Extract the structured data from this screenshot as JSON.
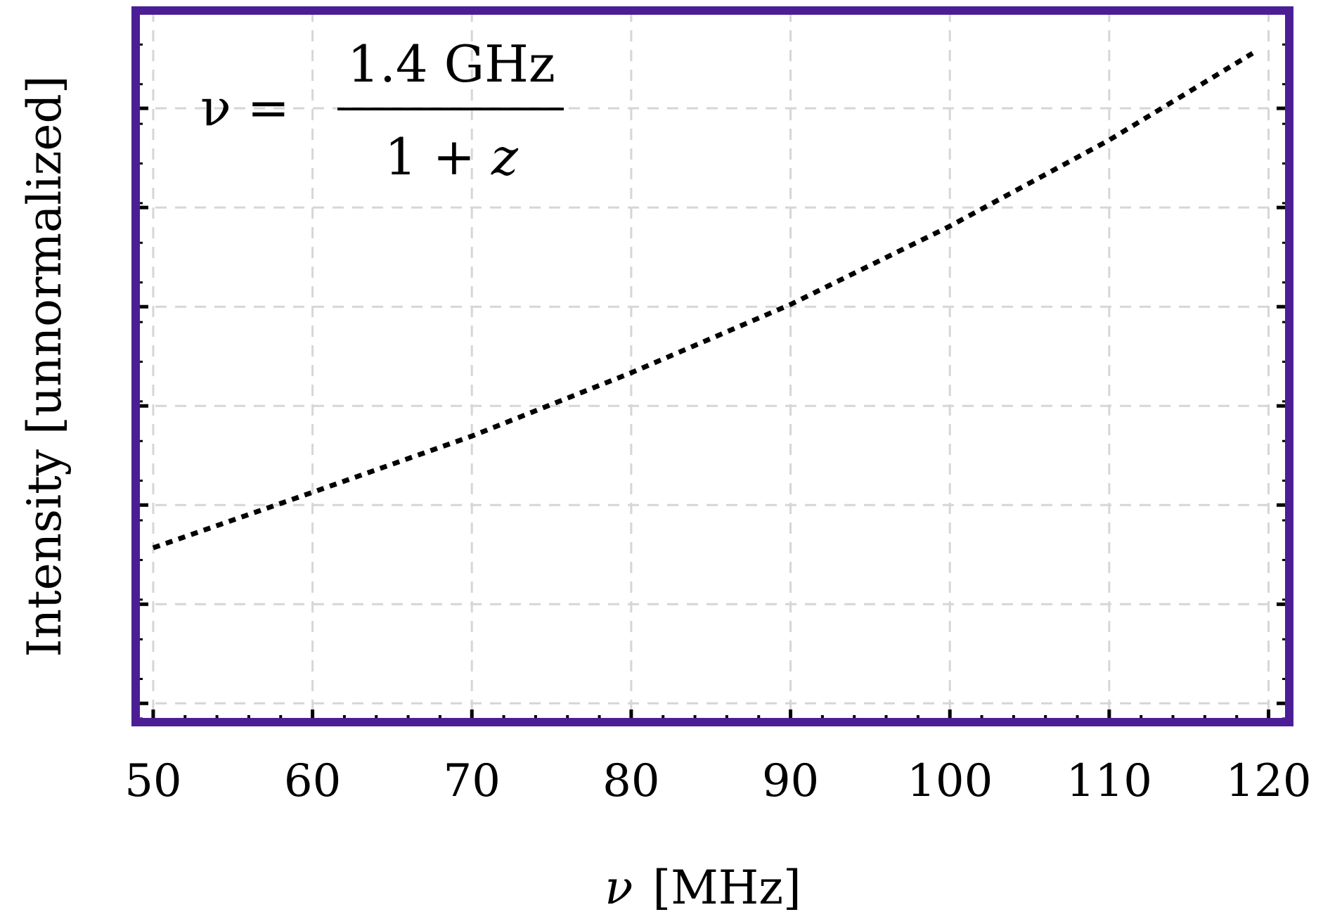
{
  "chart_data": {
    "type": "line",
    "xlabel_symbol": "ν",
    "xlabel_unit": "[MHz]",
    "ylabel": "Intensity [unnormalized]",
    "xlim": [
      48.9,
      121.3
    ],
    "ylim": [
      0,
      1
    ],
    "x_ticks": [
      50,
      60,
      70,
      80,
      90,
      100,
      110,
      120
    ],
    "grid": true,
    "y_tick_labels_shown": false,
    "series": [
      {
        "line_style": "dotted",
        "color": "#000000",
        "x": [
          50,
          60,
          70,
          80,
          90,
          100,
          110,
          119
        ],
        "y": [
          0.245,
          0.323,
          0.402,
          0.491,
          0.587,
          0.697,
          0.818,
          0.94
        ]
      }
    ],
    "annotation": {
      "lhs": "ν =",
      "numerator": "1.4 GHz",
      "denominator_a": "1 + ",
      "denominator_var": "z",
      "position": "top-left"
    },
    "frame_color": "#4b1e96"
  }
}
